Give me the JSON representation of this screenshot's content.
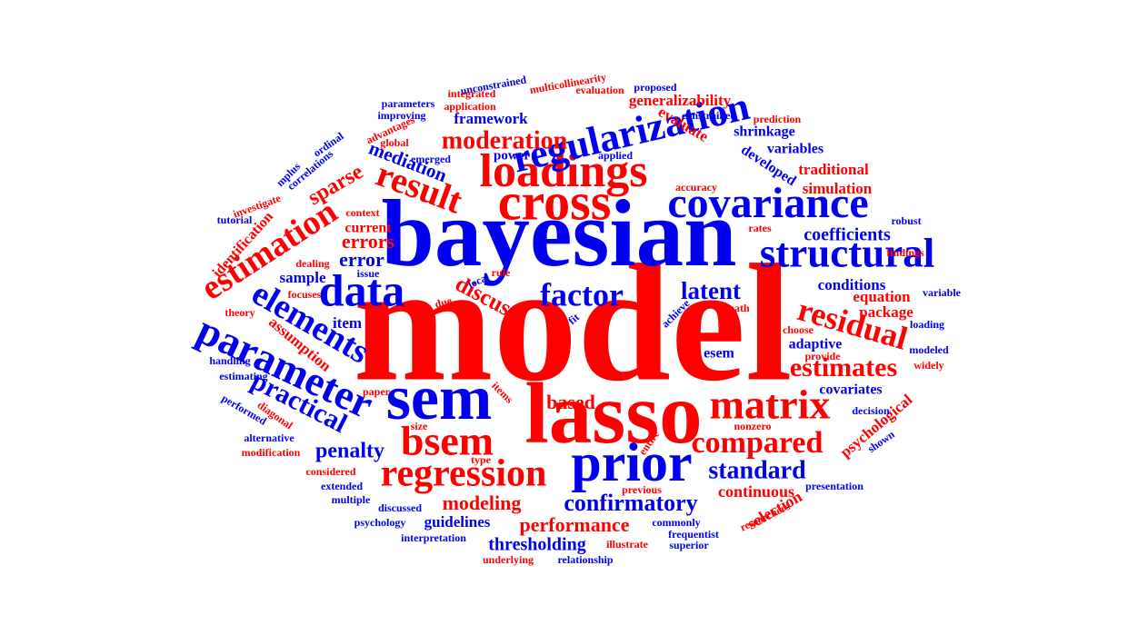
{
  "colors": {
    "red": "#ff0000",
    "blue": "#0000ee",
    "background": "#ffffff"
  },
  "words": [
    {
      "text": "model",
      "color": "red"
    },
    {
      "text": "bayesian",
      "color": "blue"
    },
    {
      "text": "lasso",
      "color": "red"
    },
    {
      "text": "sem",
      "color": "blue"
    },
    {
      "text": "prior",
      "color": "blue"
    },
    {
      "text": "cross",
      "color": "red"
    },
    {
      "text": "loadings",
      "color": "red"
    },
    {
      "text": "covariance",
      "color": "blue"
    },
    {
      "text": "regularization",
      "color": "blue"
    },
    {
      "text": "structural",
      "color": "blue"
    },
    {
      "text": "matrix",
      "color": "red"
    },
    {
      "text": "data",
      "color": "blue"
    },
    {
      "text": "parameter",
      "color": "blue"
    },
    {
      "text": "bsem",
      "color": "red"
    },
    {
      "text": "regression",
      "color": "red"
    },
    {
      "text": "result",
      "color": "red"
    },
    {
      "text": "estimation",
      "color": "red"
    },
    {
      "text": "elements",
      "color": "blue"
    },
    {
      "text": "residual",
      "color": "red"
    },
    {
      "text": "factor",
      "color": "blue"
    },
    {
      "text": "compared",
      "color": "red"
    },
    {
      "text": "standard",
      "color": "blue"
    },
    {
      "text": "estimates",
      "color": "red"
    },
    {
      "text": "confirmatory",
      "color": "blue"
    },
    {
      "text": "practical",
      "color": "blue"
    },
    {
      "text": "moderation",
      "color": "red"
    },
    {
      "text": "latent",
      "color": "blue"
    },
    {
      "text": "modeling",
      "color": "red"
    },
    {
      "text": "performance",
      "color": "red"
    },
    {
      "text": "penalty",
      "color": "blue"
    },
    {
      "text": "thresholding",
      "color": "blue"
    },
    {
      "text": "mediation",
      "color": "blue"
    },
    {
      "text": "discuss",
      "color": "red"
    },
    {
      "text": "sparse",
      "color": "red"
    },
    {
      "text": "errors",
      "color": "red"
    },
    {
      "text": "error",
      "color": "blue"
    },
    {
      "text": "based",
      "color": "red"
    },
    {
      "text": "coefficients",
      "color": "blue"
    },
    {
      "text": "equation",
      "color": "red"
    },
    {
      "text": "conditions",
      "color": "blue"
    },
    {
      "text": "package",
      "color": "red"
    },
    {
      "text": "adaptive",
      "color": "blue"
    },
    {
      "text": "covariates",
      "color": "blue"
    },
    {
      "text": "continuous",
      "color": "red"
    },
    {
      "text": "selection",
      "color": "red"
    },
    {
      "text": "guidelines",
      "color": "blue"
    },
    {
      "text": "psychological",
      "color": "red"
    },
    {
      "text": "assumption",
      "color": "red"
    },
    {
      "text": "identification",
      "color": "red"
    },
    {
      "text": "sample",
      "color": "blue"
    },
    {
      "text": "item",
      "color": "blue"
    },
    {
      "text": "current",
      "color": "red"
    },
    {
      "text": "esem",
      "color": "blue"
    },
    {
      "text": "generalizability",
      "color": "red"
    },
    {
      "text": "framework",
      "color": "blue"
    },
    {
      "text": "shrinkage",
      "color": "blue"
    },
    {
      "text": "traditional",
      "color": "red"
    },
    {
      "text": "simulation",
      "color": "red"
    },
    {
      "text": "variables",
      "color": "blue"
    },
    {
      "text": "developed",
      "color": "blue"
    },
    {
      "text": "evaluate",
      "color": "red"
    },
    {
      "text": "power",
      "color": "blue"
    },
    {
      "text": "robust",
      "color": "blue"
    },
    {
      "text": "unconstrained",
      "color": "blue"
    },
    {
      "text": "multicollinearity",
      "color": "red"
    },
    {
      "text": "proposed",
      "color": "blue"
    },
    {
      "text": "evaluation",
      "color": "red"
    },
    {
      "text": "integrated",
      "color": "red"
    },
    {
      "text": "parameters",
      "color": "blue"
    },
    {
      "text": "application",
      "color": "red"
    },
    {
      "text": "improving",
      "color": "blue"
    },
    {
      "text": "constrained",
      "color": "blue"
    },
    {
      "text": "prediction",
      "color": "red"
    },
    {
      "text": "advantages",
      "color": "red"
    },
    {
      "text": "global",
      "color": "red"
    },
    {
      "text": "emerged",
      "color": "blue"
    },
    {
      "text": "applied",
      "color": "blue"
    },
    {
      "text": "ordinal",
      "color": "blue"
    },
    {
      "text": "correlations",
      "color": "blue"
    },
    {
      "text": "mplus",
      "color": "blue"
    },
    {
      "text": "investigate",
      "color": "red"
    },
    {
      "text": "tutorial",
      "color": "blue"
    },
    {
      "text": "context",
      "color": "red"
    },
    {
      "text": "accuracy",
      "color": "red"
    },
    {
      "text": "rates",
      "color": "red"
    },
    {
      "text": "findings",
      "color": "red"
    },
    {
      "text": "dealing",
      "color": "red"
    },
    {
      "text": "issue",
      "color": "blue"
    },
    {
      "text": "rule",
      "color": "red"
    },
    {
      "text": "local",
      "color": "blue"
    },
    {
      "text": "focuses",
      "color": "red"
    },
    {
      "text": "due",
      "color": "red"
    },
    {
      "text": "theory",
      "color": "red"
    },
    {
      "text": "fit",
      "color": "blue"
    },
    {
      "text": "achieve",
      "color": "blue"
    },
    {
      "text": "path",
      "color": "red"
    },
    {
      "text": "choose",
      "color": "red"
    },
    {
      "text": "provide",
      "color": "red"
    },
    {
      "text": "variable",
      "color": "blue"
    },
    {
      "text": "loading",
      "color": "blue"
    },
    {
      "text": "modeled",
      "color": "blue"
    },
    {
      "text": "widely",
      "color": "red"
    },
    {
      "text": "handling",
      "color": "blue"
    },
    {
      "text": "estimating",
      "color": "blue"
    },
    {
      "text": "paper",
      "color": "red"
    },
    {
      "text": "items",
      "color": "red"
    },
    {
      "text": "performed",
      "color": "blue"
    },
    {
      "text": "diagonal",
      "color": "red"
    },
    {
      "text": "decision",
      "color": "blue"
    },
    {
      "text": "size",
      "color": "red"
    },
    {
      "text": "nonzero",
      "color": "red"
    },
    {
      "text": "alternative",
      "color": "blue"
    },
    {
      "text": "entire",
      "color": "red"
    },
    {
      "text": "shown",
      "color": "blue"
    },
    {
      "text": "modification",
      "color": "red"
    },
    {
      "text": "type",
      "color": "red"
    },
    {
      "text": "considered",
      "color": "red"
    },
    {
      "text": "extended",
      "color": "blue"
    },
    {
      "text": "previous",
      "color": "red"
    },
    {
      "text": "presentation",
      "color": "blue"
    },
    {
      "text": "multiple",
      "color": "blue"
    },
    {
      "text": "discussed",
      "color": "blue"
    },
    {
      "text": "psychology",
      "color": "blue"
    },
    {
      "text": "commonly",
      "color": "blue"
    },
    {
      "text": "frequentist",
      "color": "blue"
    },
    {
      "text": "researchers",
      "color": "red"
    },
    {
      "text": "interpretation",
      "color": "blue"
    },
    {
      "text": "illustrate",
      "color": "red"
    },
    {
      "text": "superior",
      "color": "blue"
    },
    {
      "text": "underlying",
      "color": "red"
    },
    {
      "text": "relationship",
      "color": "blue"
    }
  ]
}
